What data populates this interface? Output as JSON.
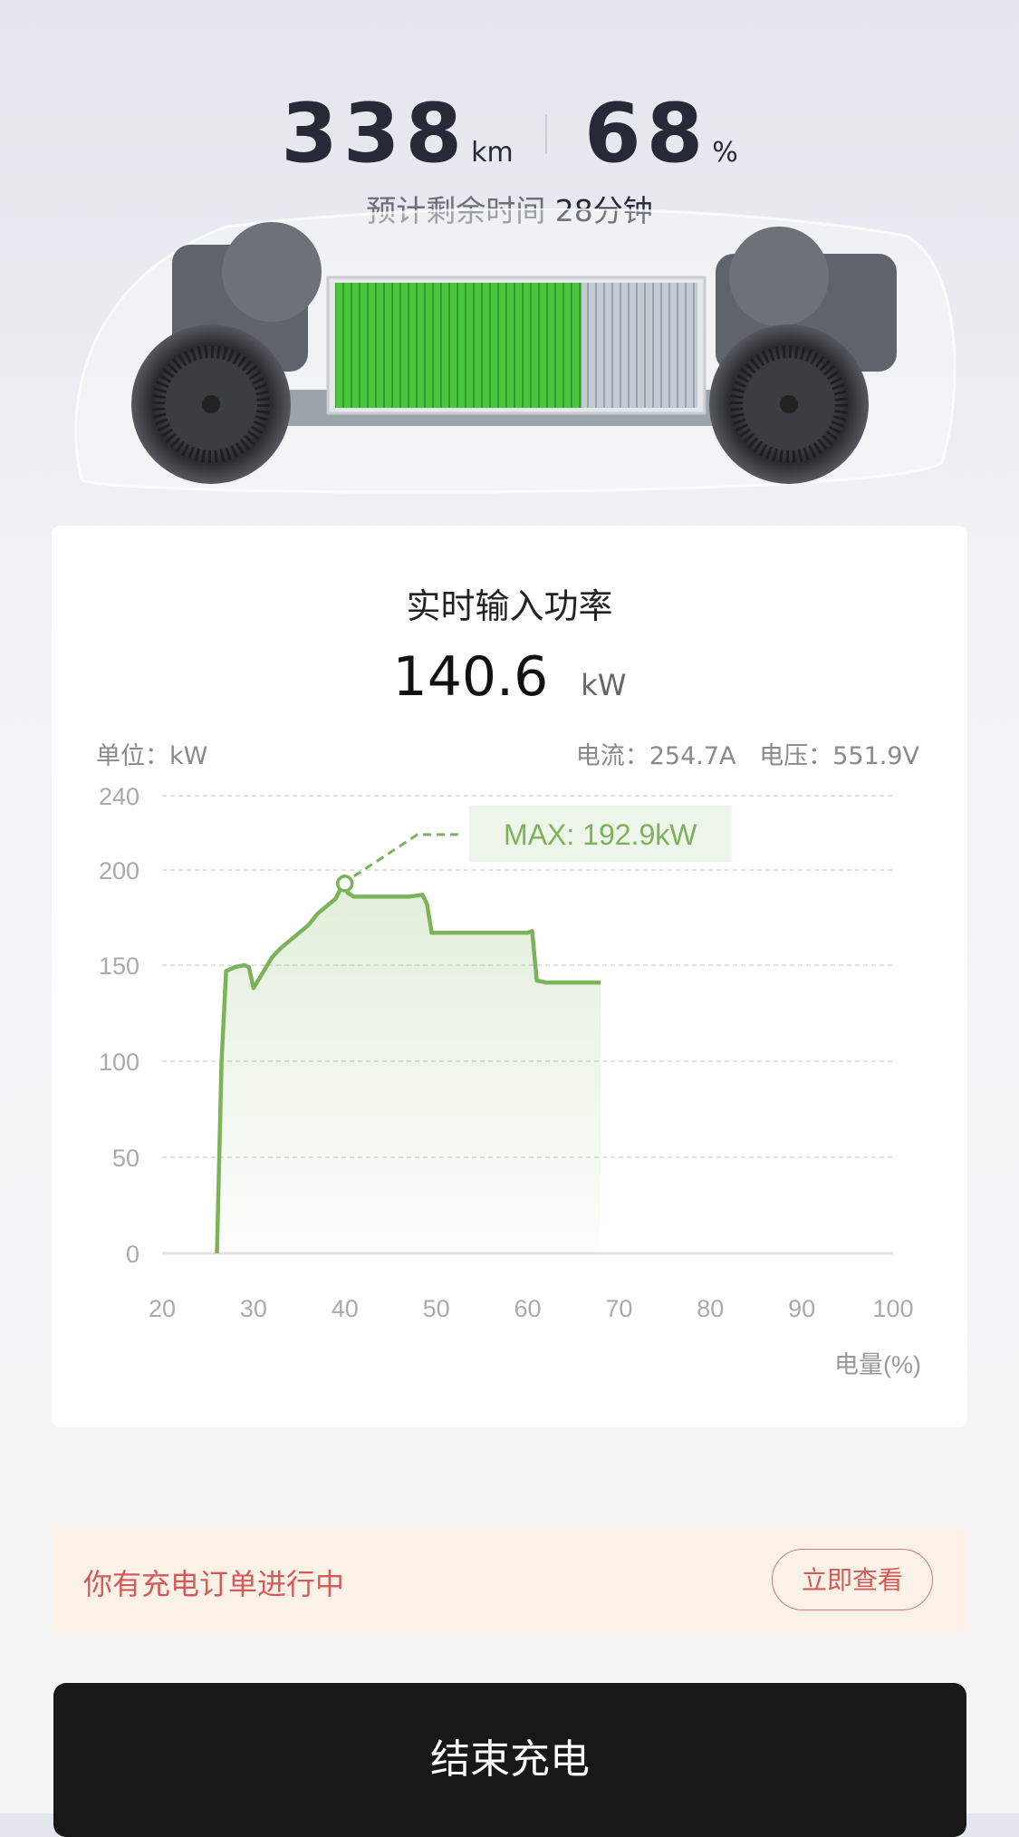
{
  "status": {
    "range_value": "338",
    "range_unit": "km",
    "soc_value": "68",
    "soc_unit": "%",
    "soc_fraction": 0.68,
    "eta_label": "预计剩余时间",
    "eta_value": "28分钟"
  },
  "power_card": {
    "title": "实时输入功率",
    "power_value": "140.6",
    "power_unit": "kW",
    "unit_label": "单位：kW",
    "current_label": "电流：254.7A",
    "voltage_label": "电压：551.9V"
  },
  "chart_data": {
    "type": "area",
    "xlabel": "电量(%)",
    "ylabel": "",
    "xlim": [
      20,
      100
    ],
    "ylim": [
      0,
      240
    ],
    "x_ticks": [
      20,
      30,
      40,
      50,
      60,
      70,
      80,
      90,
      100
    ],
    "y_ticks": [
      0,
      50,
      100,
      150,
      200,
      240
    ],
    "grid": true,
    "line_color": "#7cb35a",
    "x": [
      26,
      26.5,
      27,
      28,
      29,
      29.5,
      30,
      31,
      32,
      33,
      34,
      35,
      36,
      37,
      38,
      39,
      39.8,
      40.3,
      41,
      43,
      45,
      47,
      48.5,
      49,
      49.5,
      52,
      55,
      58,
      60,
      60.5,
      61,
      62,
      65,
      68
    ],
    "y": [
      0,
      100,
      147,
      149,
      150,
      149,
      138,
      146,
      154,
      159,
      163,
      167,
      171,
      177,
      181,
      185,
      192.9,
      188,
      186,
      186,
      186,
      186,
      187,
      182,
      167,
      167,
      167,
      167,
      167,
      168,
      142,
      141,
      141,
      141
    ],
    "annotation": {
      "label": "MAX: 192.9kW",
      "x": 40,
      "y": 192.9
    }
  },
  "order_banner": {
    "text": "你有充电订单进行中",
    "button_label": "立即查看"
  },
  "end_button_label": "结束充电",
  "colors": {
    "accent_green": "#7cb35a",
    "battery_green": "#45c23a",
    "banner_bg": "#fdf2e7",
    "banner_text": "#d45a5a",
    "end_button_bg": "#181818"
  }
}
